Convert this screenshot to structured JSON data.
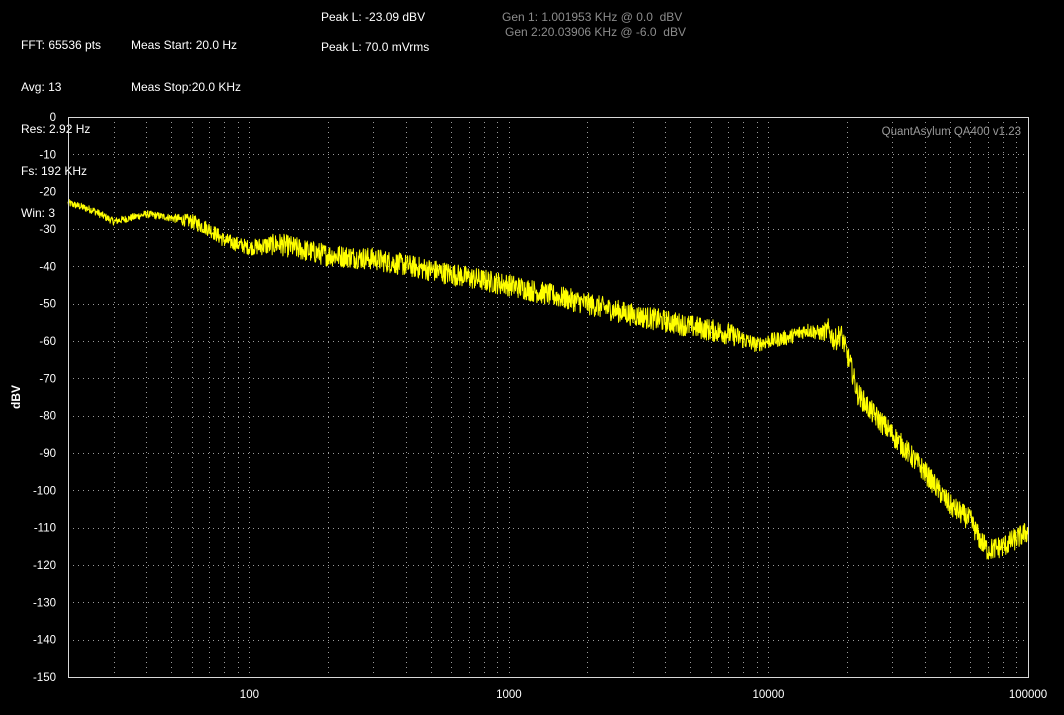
{
  "header": {
    "col1": [
      "FFT: 65536 pts",
      "Avg: 13",
      "Res: 2.92 Hz",
      "Fs: 192 KHz",
      "Win: 3"
    ],
    "col2": [
      "Meas Start: 20.0 Hz",
      "Meas Stop:20.0 KHz"
    ],
    "peak_l_dbv": "Peak L: -23.09 dBV",
    "peak_l_mvrms": "Peak L: 70.0 mVrms",
    "gen1": "Gen 1: 1.001953 KHz @ 0.0  dBV",
    "gen2": "Gen 2:20.03906 KHz @ -6.0  dBV"
  },
  "chart_data": {
    "type": "line",
    "title": "",
    "watermark": "QuantAsylum QA400 v1.23",
    "xlabel": "",
    "ylabel": "dBV",
    "x_scale": "log",
    "xlim": [
      20,
      100000
    ],
    "ylim": [
      -150,
      0
    ],
    "x_ticks": [
      100,
      1000,
      10000,
      100000
    ],
    "x_tick_labels": [
      "100",
      "1000",
      "10000",
      "100000"
    ],
    "y_ticks": [
      0,
      -10,
      -20,
      -30,
      -40,
      -50,
      -60,
      -70,
      -80,
      -90,
      -100,
      -110,
      -120,
      -130,
      -140,
      -150
    ],
    "y_tick_labels": [
      "0",
      "-10",
      "-20",
      "-30",
      "-40",
      "-50",
      "-60",
      "-70",
      "-80",
      "-90",
      "-100",
      "-110",
      "-120",
      "-130",
      "-140",
      "-150"
    ],
    "grid": true,
    "series_color": "#ffff00",
    "series": [
      {
        "x": [
          20,
          25,
          30,
          35,
          40,
          50,
          60,
          70,
          80,
          100,
          130,
          170,
          200,
          300,
          500,
          700,
          1000,
          2000,
          3000,
          5000,
          7000,
          9000,
          10000,
          12000,
          14000,
          16000,
          17000,
          18000,
          19000,
          20000,
          21000,
          22000,
          25000,
          30000,
          40000,
          50000,
          60000,
          65000,
          70000,
          80000,
          90000,
          100000
        ],
        "y": [
          -23,
          -25,
          -28,
          -27,
          -26,
          -27,
          -28,
          -30,
          -33,
          -35,
          -34,
          -36,
          -37,
          -38,
          -41,
          -43,
          -45,
          -50,
          -53,
          -56,
          -58,
          -61,
          -60,
          -59,
          -57,
          -58,
          -57,
          -60,
          -58,
          -63,
          -68,
          -74,
          -79,
          -85,
          -95,
          -104,
          -108,
          -113,
          -116,
          -115,
          -113,
          -111
        ],
        "spread": [
          1,
          1,
          1,
          1,
          1,
          1,
          2,
          2,
          2,
          2,
          3,
          3,
          3,
          3,
          3,
          3,
          3,
          3,
          3,
          3,
          3,
          2,
          2,
          2,
          2,
          2,
          3,
          3,
          3,
          3,
          3,
          3,
          3,
          3,
          3,
          3,
          3,
          3,
          3,
          3,
          3,
          3
        ]
      }
    ]
  }
}
